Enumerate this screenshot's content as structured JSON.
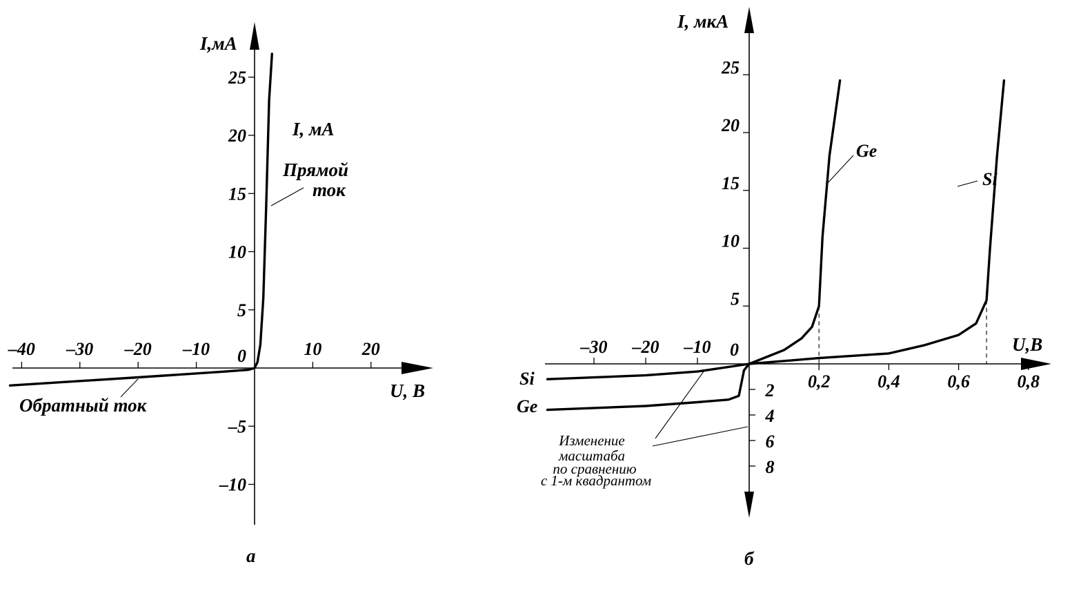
{
  "chart_data": [
    {
      "panel": "а",
      "type": "line",
      "xlabel": "U, В",
      "ylabel": "I,мА",
      "x_ticks": [
        {
          "value": -40,
          "label": "–40"
        },
        {
          "value": -30,
          "label": "–30"
        },
        {
          "value": -20,
          "label": "–20"
        },
        {
          "value": -10,
          "label": "–10"
        },
        {
          "value": 10,
          "label": "10"
        },
        {
          "value": 20,
          "label": "20"
        }
      ],
      "y_ticks": [
        {
          "value": 25,
          "label": "25"
        },
        {
          "value": 20,
          "label": "20"
        },
        {
          "value": 15,
          "label": "15"
        },
        {
          "value": 10,
          "label": "10"
        },
        {
          "value": 5,
          "label": "5"
        },
        {
          "value": -5,
          "label": "–5"
        },
        {
          "value": -10,
          "label": "–10"
        }
      ],
      "origin_label": "0",
      "xlim": [
        -42,
        31
      ],
      "ylim": [
        -13,
        28
      ],
      "series": [
        {
          "points": [
            [
              -42,
              -1.5
            ],
            [
              -20,
              -0.8
            ],
            [
              -5,
              -0.3
            ],
            [
              -1,
              -0.15
            ],
            [
              0,
              0
            ],
            [
              0.5,
              0.5
            ],
            [
              1,
              2
            ],
            [
              1.5,
              6
            ],
            [
              2,
              14
            ],
            [
              2.5,
              23
            ],
            [
              3,
              27
            ]
          ]
        }
      ],
      "annotations": {
        "current_label": "I, мА",
        "forward_label_line1": "Прямой",
        "forward_label_line2": "ток",
        "reverse_label": "Обратный ток"
      }
    },
    {
      "panel": "б",
      "type": "line",
      "xlabel": "U,В",
      "ylabel": "I, мкА",
      "x_ticks_positive": [
        {
          "value": 0.2,
          "label": "0,2"
        },
        {
          "value": 0.4,
          "label": "0,4"
        },
        {
          "value": 0.6,
          "label": "0,6"
        },
        {
          "value": 0.8,
          "label": "0,8"
        }
      ],
      "x_ticks_negative": [
        {
          "value": -30,
          "label": "–30"
        },
        {
          "value": -20,
          "label": "–20"
        },
        {
          "value": -10,
          "label": "–10"
        }
      ],
      "y_ticks_positive": [
        {
          "value": 25,
          "label": "25"
        },
        {
          "value": 20,
          "label": "20"
        },
        {
          "value": 15,
          "label": "15"
        },
        {
          "value": 10,
          "label": "10"
        },
        {
          "value": 5,
          "label": "5"
        }
      ],
      "y_ticks_negative": [
        {
          "value": 2,
          "label": "2"
        },
        {
          "value": 4,
          "label": "4"
        },
        {
          "value": 6,
          "label": "6"
        },
        {
          "value": 8,
          "label": "8"
        }
      ],
      "origin_label": "0",
      "series": [
        {
          "name": "Ge",
          "forward": [
            [
              0,
              0
            ],
            [
              0.05,
              0.6
            ],
            [
              0.1,
              1.2
            ],
            [
              0.15,
              2.2
            ],
            [
              0.18,
              3.2
            ],
            [
              0.2,
              5
            ],
            [
              0.21,
              11
            ],
            [
              0.23,
              18
            ],
            [
              0.26,
              24.5
            ]
          ],
          "reverse": [
            [
              0,
              0
            ],
            [
              -1,
              -0.5
            ],
            [
              -2,
              -2.5
            ],
            [
              -4,
              -2.8
            ],
            [
              -10,
              -3.0
            ],
            [
              -20,
              -3.3
            ],
            [
              -39,
              -3.6
            ]
          ]
        },
        {
          "name": "Si",
          "forward": [
            [
              0,
              0
            ],
            [
              0.2,
              0.5
            ],
            [
              0.4,
              0.9
            ],
            [
              0.5,
              1.6
            ],
            [
              0.6,
              2.5
            ],
            [
              0.65,
              3.5
            ],
            [
              0.68,
              5.5
            ],
            [
              0.69,
              10
            ],
            [
              0.71,
              18
            ],
            [
              0.73,
              24.5
            ]
          ],
          "reverse": [
            [
              0,
              0
            ],
            [
              -10,
              -0.6
            ],
            [
              -20,
              -0.9
            ],
            [
              -39,
              -1.2
            ]
          ]
        }
      ],
      "reference_lines_x": [
        0.2,
        0.68
      ],
      "annotations": {
        "scale_note_lines": [
          "Изменение",
          "масштаба",
          "по сравнению",
          "с 1-м квадрантом"
        ]
      }
    }
  ]
}
